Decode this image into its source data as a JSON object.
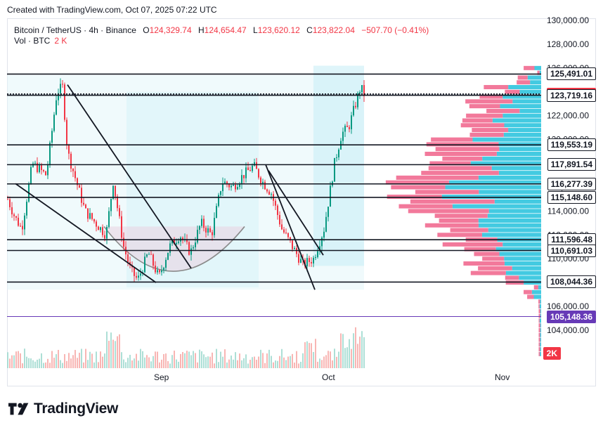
{
  "caption": "Created with TradingView.com, Oct 07, 2025 07:22 UTC",
  "legend": {
    "symbol": "Bitcoin / TetherUS · 4h · Binance",
    "open_label": "O",
    "open": "124,329.74",
    "high_label": "H",
    "high": "124,654.47",
    "low_label": "L",
    "low": "123,620.12",
    "close_label": "C",
    "close": "123,822.04",
    "change": "−507.70 (−0.41%)"
  },
  "volume": {
    "label": "Vol · BTC",
    "value": "2 K"
  },
  "price_axis": {
    "ticks": [
      "130,000.00",
      "128,000.00",
      "126,000.00",
      "124,000.00",
      "122,000.00",
      "120,000.00",
      "118,000.00",
      "116,000.00",
      "114,000.00",
      "112,000.00",
      "110,000.00",
      "108,000.00",
      "106,000.00",
      "104,000.00"
    ],
    "tick_values": [
      130000,
      128000,
      126000,
      124000,
      122000,
      120000,
      118000,
      116000,
      114000,
      112000,
      110000,
      108000,
      106000,
      104000
    ]
  },
  "level_badges": [
    {
      "text": "125,491.01",
      "value": 125491.01,
      "bg": "#ffffff",
      "fg": "#131722",
      "border": "#131722"
    },
    {
      "text": "123,822.04",
      "value": 123822.04,
      "bg": "#f23645",
      "fg": "#ffffff",
      "border": "#f23645"
    },
    {
      "text": "123,719.16",
      "value": 123719.16,
      "bg": "#ffffff",
      "fg": "#131722",
      "border": "#131722"
    },
    {
      "text": "119,553.19",
      "value": 119553.19,
      "bg": "#ffffff",
      "fg": "#131722",
      "border": "#131722"
    },
    {
      "text": "117,891.54",
      "value": 117891.54,
      "bg": "#ffffff",
      "fg": "#131722",
      "border": "#131722"
    },
    {
      "text": "116,277.39",
      "value": 116277.39,
      "bg": "#ffffff",
      "fg": "#131722",
      "border": "#131722"
    },
    {
      "text": "115,148.60",
      "value": 115148.6,
      "bg": "#ffffff",
      "fg": "#131722",
      "border": "#131722"
    },
    {
      "text": "111,596.48",
      "value": 111596.48,
      "bg": "#ffffff",
      "fg": "#131722",
      "border": "#131722"
    },
    {
      "text": "110,691.03",
      "value": 110691.03,
      "bg": "#ffffff",
      "fg": "#131722",
      "border": "#131722"
    },
    {
      "text": "108,044.36",
      "value": 108044.36,
      "bg": "#ffffff",
      "fg": "#131722",
      "border": "#131722"
    },
    {
      "text": "105,148.36",
      "value": 105148.36,
      "bg": "#673ab7",
      "fg": "#ffffff",
      "border": "#673ab7"
    },
    {
      "text": "2K",
      "value": null,
      "bg": "#f23645",
      "fg": "#ffffff",
      "border": "#f23645"
    }
  ],
  "time_axis": {
    "labels": [
      "Sep",
      "Oct",
      "Nov"
    ]
  },
  "brand": {
    "name": "TradingView"
  },
  "colors": {
    "up": "#089981",
    "down": "#f23645",
    "vp_up": "#22c1dc",
    "vp_down": "#f0628a",
    "box": "#e3f6fa"
  },
  "chart_data": {
    "type": "candlestick",
    "title": "",
    "xlabel": "",
    "ylabel": "",
    "ylim": [
      103000,
      130500
    ],
    "x_labels": [
      "Sep",
      "Oct",
      "Nov"
    ],
    "price_path": [
      [
        0,
        115000
      ],
      [
        10,
        113500
      ],
      [
        20,
        112500
      ],
      [
        35,
        118000
      ],
      [
        55,
        117000
      ],
      [
        70,
        124000
      ],
      [
        78,
        124400
      ],
      [
        85,
        119000
      ],
      [
        95,
        117000
      ],
      [
        110,
        114000
      ],
      [
        125,
        113000
      ],
      [
        140,
        112000
      ],
      [
        150,
        116500
      ],
      [
        165,
        111000
      ],
      [
        175,
        109000
      ],
      [
        185,
        108200
      ],
      [
        200,
        110500
      ],
      [
        215,
        108400
      ],
      [
        230,
        111000
      ],
      [
        245,
        112000
      ],
      [
        260,
        110500
      ],
      [
        275,
        113000
      ],
      [
        290,
        112000
      ],
      [
        305,
        116500
      ],
      [
        320,
        116000
      ],
      [
        335,
        117000
      ],
      [
        350,
        117800
      ],
      [
        362,
        116500
      ],
      [
        375,
        115500
      ],
      [
        390,
        112500
      ],
      [
        405,
        111000
      ],
      [
        420,
        109500
      ],
      [
        435,
        110000
      ],
      [
        450,
        112500
      ],
      [
        465,
        118000
      ],
      [
        475,
        120500
      ],
      [
        485,
        121000
      ],
      [
        495,
        123000
      ],
      [
        502,
        124400
      ],
      [
        508,
        123700
      ]
    ],
    "trendlines": [
      {
        "name": "line-a",
        "points": [
          [
            12,
            116300
          ],
          [
            212,
            108000
          ]
        ]
      },
      {
        "name": "line-b",
        "points": [
          [
            86,
            124600
          ],
          [
            262,
            109200
          ]
        ]
      },
      {
        "name": "line-c",
        "points": [
          [
            368,
            117900
          ],
          [
            438,
            107400
          ]
        ]
      },
      {
        "name": "line-d",
        "points": [
          [
            372,
            117400
          ],
          [
            450,
            110300
          ]
        ]
      }
    ],
    "annotation": "cup"
  }
}
